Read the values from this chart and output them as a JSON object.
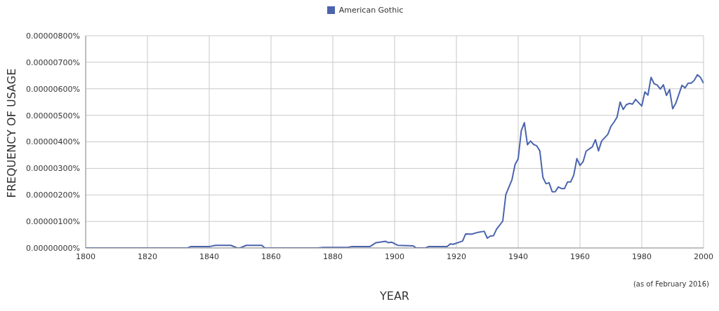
{
  "chart_data": {
    "type": "line",
    "xlabel": "YEAR",
    "ylabel": "FREQUENCY OF USAGE",
    "annotations": [
      "(as of February 2016)"
    ],
    "x": [
      1800,
      1833,
      1834,
      1840,
      1842,
      1847,
      1849,
      1850,
      1852,
      1857,
      1858,
      1875,
      1877,
      1885,
      1886,
      1892,
      1894,
      1897,
      1898,
      1899,
      1901,
      1906,
      1907,
      1910,
      1911,
      1917,
      1918,
      1919,
      1922,
      1923,
      1925,
      1927,
      1929,
      1930,
      1931,
      1932,
      1933,
      1935,
      1936,
      1938,
      1939,
      1940,
      1941,
      1942,
      1943,
      1944,
      1945,
      1946,
      1947,
      1948,
      1949,
      1950,
      1951,
      1952,
      1953,
      1954,
      1955,
      1956,
      1957,
      1958,
      1959,
      1960,
      1961,
      1962,
      1964,
      1965,
      1966,
      1967,
      1969,
      1970,
      1971,
      1972,
      1973,
      1974,
      1975,
      1976,
      1977,
      1978,
      1980,
      1981,
      1982,
      1983,
      1984,
      1985,
      1986,
      1987,
      1988,
      1989,
      1990,
      1991,
      1993,
      1994,
      1995,
      1996,
      1997,
      1998,
      1999,
      2000
    ],
    "series": [
      {
        "name": "American Gothic",
        "color": "#4a64ae",
        "values": [
          0,
          0,
          5e-08,
          5e-08,
          1e-07,
          1e-07,
          0,
          0,
          1e-07,
          1e-07,
          0,
          0,
          2e-08,
          2e-08,
          5e-08,
          5e-08,
          2e-07,
          2.5e-07,
          2e-07,
          2.2e-07,
          1e-07,
          8e-08,
          0,
          0,
          5e-08,
          5e-08,
          1.5e-07,
          1.4e-07,
          2.6e-07,
          5.3e-07,
          5.2e-07,
          5.9e-07,
          6.3e-07,
          3.7e-07,
          4.5e-07,
          4.6e-07,
          7.1e-07,
          1.01e-06,
          2.01e-06,
          2.58e-06,
          3.15e-06,
          3.36e-06,
          4.42e-06,
          4.72e-06,
          3.89e-06,
          4.03e-06,
          3.9e-06,
          3.85e-06,
          3.66e-06,
          2.66e-06,
          2.42e-06,
          2.46e-06,
          2.12e-06,
          2.12e-06,
          2.3e-06,
          2.24e-06,
          2.24e-06,
          2.49e-06,
          2.49e-06,
          2.75e-06,
          3.37e-06,
          3.11e-06,
          3.25e-06,
          3.65e-06,
          3.81e-06,
          4.08e-06,
          3.66e-06,
          4.03e-06,
          4.28e-06,
          4.58e-06,
          4.74e-06,
          4.93e-06,
          5.5e-06,
          5.22e-06,
          5.4e-06,
          5.45e-06,
          5.42e-06,
          5.6e-06,
          5.35e-06,
          5.88e-06,
          5.76e-06,
          6.43e-06,
          6.19e-06,
          6.14e-06,
          5.99e-06,
          6.15e-06,
          5.75e-06,
          5.97e-06,
          5.25e-06,
          5.45e-06,
          6.13e-06,
          6.03e-06,
          6.21e-06,
          6.21e-06,
          6.32e-06,
          6.53e-06,
          6.43e-06,
          6.21e-06
        ]
      }
    ],
    "xlim": [
      1800,
      2000
    ],
    "xticks": [
      1800,
      1820,
      1840,
      1860,
      1880,
      1900,
      1920,
      1940,
      1960,
      1980,
      2000
    ],
    "ylim": [
      0,
      8e-06
    ],
    "yticks": [
      {
        "value": 0,
        "label": "0.00000000%"
      },
      {
        "value": 1e-06,
        "label": "0.00000100%"
      },
      {
        "value": 2e-06,
        "label": "0.00000200%"
      },
      {
        "value": 3e-06,
        "label": "0.00000300%"
      },
      {
        "value": 4e-06,
        "label": "0.00000400%"
      },
      {
        "value": 5e-06,
        "label": "0.00000500%"
      },
      {
        "value": 6e-06,
        "label": "0.00000600%"
      },
      {
        "value": 7e-06,
        "label": "0.00000700%"
      },
      {
        "value": 8e-06,
        "label": "0.00000800%"
      }
    ],
    "grid": true,
    "legend": "top",
    "marker": "none",
    "line_style": "solid"
  }
}
